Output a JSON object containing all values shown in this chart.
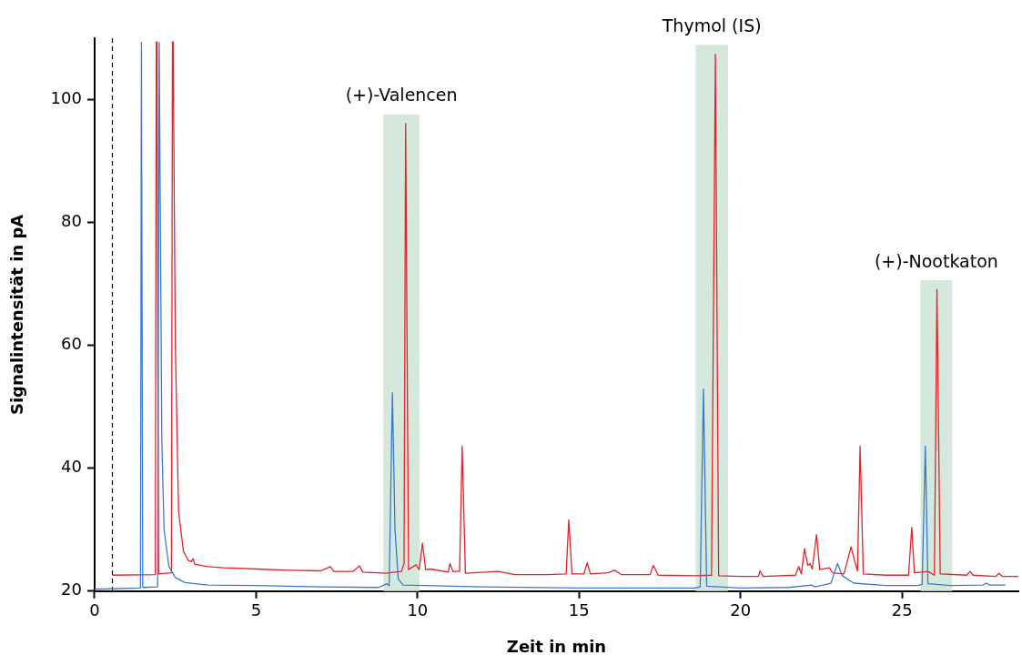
{
  "chart_data": {
    "type": "line",
    "xlabel": "Zeit in min",
    "ylabel": "Signalintensität in pA",
    "xlim": [
      0,
      28.6
    ],
    "ylim": [
      20,
      110
    ],
    "xticks": [
      0,
      5,
      10,
      15,
      20,
      25
    ],
    "yticks": [
      20,
      40,
      60,
      80,
      100
    ],
    "grid": false,
    "legend": false,
    "series": [
      {
        "color": "#3a78d0",
        "x": [
          0,
          1.42,
          1.45,
          1.49,
          1.95,
          2.0,
          2.08,
          2.15,
          2.3,
          2.5,
          2.8,
          3.5,
          5,
          7,
          8.8,
          9.05,
          9.12,
          9.22,
          9.3,
          9.4,
          9.55,
          10.2,
          12,
          15,
          18.6,
          18.75,
          18.85,
          18.95,
          20,
          21.5,
          22.2,
          22.3,
          22.8,
          23.0,
          23.15,
          23.5,
          24.5,
          25.5,
          25.62,
          25.72,
          25.8,
          26.5,
          27.5,
          27.6,
          27.7,
          28.2
        ],
        "values": [
          20.3,
          20.5,
          109.3,
          20.6,
          20.7,
          109.3,
          45,
          30,
          24,
          22.2,
          21.4,
          21.0,
          20.9,
          20.7,
          20.6,
          21.2,
          20.9,
          52.3,
          30,
          22,
          21.0,
          20.9,
          20.7,
          20.5,
          20.5,
          20.7,
          52.9,
          20.8,
          20.5,
          20.6,
          21.0,
          20.7,
          21.3,
          24.5,
          22.5,
          21.3,
          20.9,
          20.9,
          21.1,
          43.6,
          21.2,
          20.9,
          21.0,
          21.3,
          21.0,
          21.0
        ]
      },
      {
        "color": "#e8202a",
        "x": [
          0.55,
          1.88,
          1.91,
          1.92,
          1.93,
          1.98,
          2.38,
          2.41,
          2.42,
          2.43,
          2.5,
          2.6,
          2.75,
          2.9,
          3.0,
          3.05,
          3.1,
          3.5,
          4,
          5,
          6,
          7,
          7.3,
          7.4,
          8,
          8.2,
          8.3,
          9,
          9.5,
          9.58,
          9.63,
          9.72,
          9.95,
          10.05,
          10.15,
          10.25,
          10.4,
          10.95,
          11.0,
          11.1,
          11.3,
          11.38,
          11.48,
          12.5,
          13,
          14.0,
          14.6,
          14.68,
          14.78,
          15.15,
          15.25,
          15.35,
          15.9,
          16.1,
          16.3,
          17.2,
          17.3,
          17.45,
          18.6,
          19.1,
          19.22,
          19.32,
          20.0,
          20.55,
          20.6,
          20.7,
          21.7,
          21.8,
          21.88,
          21.98,
          22.08,
          22.15,
          22.22,
          22.35,
          22.45,
          22.75,
          22.85,
          23.2,
          23.42,
          23.55,
          23.62,
          23.7,
          23.8,
          24.5,
          25.2,
          25.3,
          25.38,
          25.8,
          26.0,
          26.08,
          26.18,
          27.0,
          27.1,
          27.2,
          27.9,
          28.0,
          28.1,
          28.6
        ],
        "values": [
          22.6,
          22.7,
          109.5,
          null,
          109.5,
          22.8,
          23,
          109.5,
          null,
          109.5,
          60,
          33,
          26.5,
          25,
          24.8,
          25.3,
          24.4,
          24,
          23.8,
          23.6,
          23.4,
          23.3,
          24,
          23.2,
          23.2,
          24.1,
          23.1,
          22.9,
          23.2,
          24.5,
          96.1,
          23.5,
          24.3,
          23.5,
          27.8,
          23.5,
          23.6,
          23.1,
          24.5,
          23.2,
          23.2,
          43.6,
          22.9,
          23.2,
          22.7,
          22.7,
          22.8,
          31.6,
          22.8,
          22.8,
          24.6,
          22.8,
          23.0,
          23.4,
          22.7,
          22.7,
          24.2,
          22.6,
          22.5,
          22.6,
          107.4,
          22.5,
          22.4,
          22.4,
          23.3,
          22.4,
          22.6,
          24.0,
          22.8,
          26.9,
          24.2,
          24.5,
          23.6,
          29.2,
          23.5,
          23.8,
          23.0,
          22.8,
          27.2,
          24.5,
          23.3,
          43.6,
          22.8,
          22.6,
          22.6,
          30.4,
          23.0,
          23.2,
          22.6,
          69.1,
          22.8,
          22.6,
          23.2,
          22.6,
          22.4,
          22.9,
          22.4,
          22.4
        ]
      }
    ],
    "bands": [
      {
        "axis": "x",
        "from": 8.94,
        "to": 10.06,
        "label": "(+)-Valencen",
        "color": "#d5e8dc"
      },
      {
        "axis": "x",
        "from": 18.61,
        "to": 19.61,
        "label": "Thymol (IS)",
        "color": "#d5e8dc"
      },
      {
        "axis": "x",
        "from": 25.57,
        "to": 26.55,
        "label": "(+)-Nootkaton",
        "color": "#d5e8dc"
      }
    ],
    "ref_lines": [
      {
        "axis": "x",
        "value": 0.55,
        "line_style": "dashed",
        "color": "#000000"
      }
    ]
  }
}
